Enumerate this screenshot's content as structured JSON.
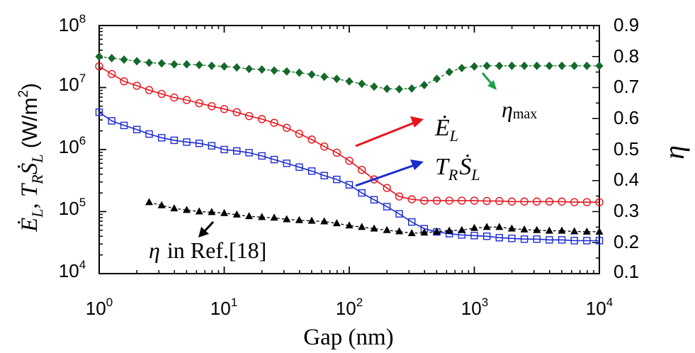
{
  "chart_data": {
    "type": "line",
    "title": "",
    "xlabel": "Gap (nm)",
    "x_scale": "log",
    "xlim": [
      1,
      10000
    ],
    "x_ticks": [
      1,
      10,
      100,
      1000,
      10000
    ],
    "x_tick_labels": [
      {
        "base": "10",
        "exp": "0"
      },
      {
        "base": "10",
        "exp": "1"
      },
      {
        "base": "10",
        "exp": "2"
      },
      {
        "base": "10",
        "exp": "3"
      },
      {
        "base": "10",
        "exp": "4"
      }
    ],
    "ylabel_left": {
      "pre": "Ė",
      "pre_sub": "L",
      "sep": ", ",
      "t": "T",
      "t_sub": "R",
      "s": "Ṡ",
      "s_sub": "L",
      "unit_open": " (W/m",
      "unit_sup": "2",
      "unit_close": ")"
    },
    "y_left_scale": "log",
    "y_left_lim": [
      10000,
      100000000
    ],
    "y_left_ticks": [
      10000,
      100000,
      1000000,
      10000000,
      100000000
    ],
    "y_left_tick_labels": [
      {
        "base": "10",
        "exp": "4"
      },
      {
        "base": "10",
        "exp": "5"
      },
      {
        "base": "10",
        "exp": "6"
      },
      {
        "base": "10",
        "exp": "7"
      },
      {
        "base": "10",
        "exp": "8"
      }
    ],
    "ylabel_right": "η",
    "y_right_lim": [
      0.1,
      0.9
    ],
    "y_right_ticks": [
      0.1,
      0.2,
      0.3,
      0.4,
      0.5,
      0.6,
      0.7,
      0.8,
      0.9
    ],
    "y_right_tick_labels": [
      "0.1",
      "0.2",
      "0.3",
      "0.4",
      "0.5",
      "0.6",
      "0.7",
      "0.8",
      "0.9"
    ],
    "series": [
      {
        "name": "Ė_L",
        "axis": "left",
        "color": "#e8141e",
        "marker": "circle",
        "line_style": "solid",
        "x": [
          1.0,
          1.26,
          1.58,
          2.0,
          2.51,
          3.16,
          3.98,
          5.01,
          6.31,
          7.94,
          10.0,
          12.6,
          15.8,
          20.0,
          25.1,
          31.6,
          39.8,
          50.1,
          63.1,
          79.4,
          100,
          126,
          158,
          200,
          251,
          316,
          398,
          501,
          631,
          794,
          1000,
          1259,
          1585,
          1995,
          2512,
          3162,
          3981,
          5012,
          6310,
          7943,
          10000
        ],
        "y": [
          22000000,
          16500000,
          12600000,
          10700000,
          9100000,
          7900000,
          6900000,
          6300000,
          5600000,
          5000000,
          4500000,
          4000000,
          3470000,
          3100000,
          2700000,
          2240000,
          1800000,
          1450000,
          1120000,
          890000,
          660000,
          470000,
          330000,
          240000,
          175000,
          158000,
          150000,
          150000,
          150000,
          150000,
          150000,
          148000,
          148000,
          145000,
          145000,
          145000,
          145000,
          145000,
          142000,
          142000,
          142000
        ]
      },
      {
        "name": "T_R Ṡ_L",
        "axis": "left",
        "color": "#1c2bd0",
        "marker": "square",
        "line_style": "solid",
        "x": [
          1.0,
          1.26,
          1.58,
          2.0,
          2.51,
          3.16,
          3.98,
          5.01,
          6.31,
          7.94,
          10.0,
          12.6,
          15.8,
          20.0,
          25.1,
          31.6,
          39.8,
          50.1,
          63.1,
          79.4,
          100,
          126,
          158,
          200,
          251,
          316,
          398,
          501,
          631,
          794,
          1000,
          1259,
          1585,
          1995,
          2512,
          3162,
          3981,
          5012,
          6310,
          7943,
          10000
        ],
        "y": [
          4000000,
          2900000,
          2450000,
          2100000,
          1780000,
          1550000,
          1410000,
          1320000,
          1260000,
          1150000,
          1000000,
          950000,
          890000,
          790000,
          690000,
          600000,
          520000,
          450000,
          380000,
          330000,
          270000,
          200000,
          155000,
          120000,
          92000,
          68000,
          53000,
          47000,
          44000,
          42000,
          41000,
          40000,
          38000,
          37000,
          36000,
          36000,
          35000,
          35000,
          34000,
          34000,
          34000
        ]
      },
      {
        "name": "η_max",
        "axis": "right",
        "color": "#13692a",
        "marker": "diamond",
        "line_style": "dashed",
        "x": [
          1.0,
          1.26,
          1.58,
          2.0,
          2.51,
          3.16,
          3.98,
          5.01,
          6.31,
          7.94,
          10.0,
          12.6,
          15.8,
          20.0,
          25.1,
          31.6,
          39.8,
          50.1,
          63.1,
          79.4,
          100,
          126,
          158,
          200,
          251,
          316,
          398,
          501,
          631,
          794,
          1000,
          1259,
          1585,
          1995,
          2512,
          3162,
          3981,
          5012,
          6310,
          7943,
          10000
        ],
        "y": [
          0.8,
          0.795,
          0.79,
          0.785,
          0.78,
          0.778,
          0.775,
          0.775,
          0.773,
          0.77,
          0.768,
          0.765,
          0.76,
          0.758,
          0.755,
          0.752,
          0.748,
          0.742,
          0.735,
          0.728,
          0.72,
          0.712,
          0.703,
          0.696,
          0.695,
          0.697,
          0.708,
          0.728,
          0.75,
          0.763,
          0.768,
          0.77,
          0.77,
          0.77,
          0.77,
          0.77,
          0.77,
          0.77,
          0.77,
          0.77,
          0.77
        ]
      },
      {
        "name": "η in Ref.[18]",
        "axis": "right",
        "color": "#000000",
        "marker": "triangle",
        "line_style": "dashed",
        "x": [
          2.51,
          3.16,
          3.98,
          5.01,
          6.31,
          7.94,
          10.0,
          12.6,
          15.8,
          20.0,
          25.1,
          31.6,
          39.8,
          50.1,
          63.1,
          79.4,
          100,
          126,
          158,
          200,
          251,
          316,
          398,
          501,
          631,
          794,
          1000,
          1259,
          1585,
          1995,
          2512,
          3162,
          3981,
          5012,
          6310,
          7943,
          10000
        ],
        "y": [
          0.33,
          0.32,
          0.31,
          0.305,
          0.3,
          0.298,
          0.295,
          0.29,
          0.285,
          0.282,
          0.28,
          0.275,
          0.272,
          0.27,
          0.268,
          0.262,
          0.255,
          0.25,
          0.245,
          0.24,
          0.236,
          0.23,
          0.232,
          0.235,
          0.238,
          0.24,
          0.247,
          0.25,
          0.25,
          0.245,
          0.242,
          0.24,
          0.238,
          0.238,
          0.236,
          0.235,
          0.235
        ]
      }
    ],
    "annotations": {
      "eta_max": {
        "sym": "η",
        "sub": "max"
      },
      "e_l": {
        "sym": "Ė",
        "sub": "L"
      },
      "ts_l": {
        "t": "T",
        "t_sub": "R",
        "s": "Ṡ",
        "s_sub": "L"
      },
      "eta_ref": {
        "sym": "η",
        "text": "in Ref.[18]"
      }
    }
  }
}
